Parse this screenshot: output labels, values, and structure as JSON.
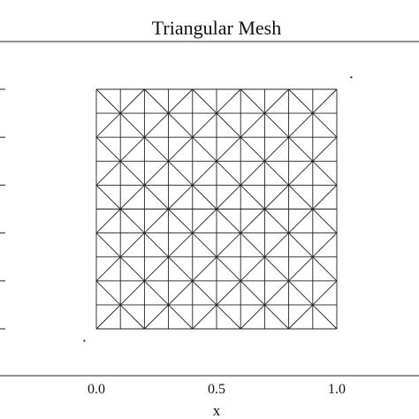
{
  "chart_data": {
    "type": "mesh",
    "title": "Triangular Mesh",
    "xlabel": "x",
    "ylabel": "",
    "xlim": [
      -0.4,
      1.35
    ],
    "ylim": [
      -0.2,
      1.25
    ],
    "x_ticks": [
      0.0,
      0.5,
      1.0
    ],
    "x_tick_labels": [
      "0.0",
      "0.5",
      "1.0"
    ],
    "y_ticks": [
      0.0,
      0.2,
      0.4,
      0.6,
      0.8,
      1.0
    ],
    "mesh": {
      "domain_x": [
        0.0,
        1.0
      ],
      "domain_y": [
        0.0,
        1.0
      ],
      "divisions": 10,
      "element": "triangle",
      "pattern": "cross-diagonals alternating"
    },
    "stray_points": [
      {
        "x": 1.06,
        "y": 1.05
      },
      {
        "x": -0.05,
        "y": -0.05
      }
    ],
    "grid": false,
    "legend": "none"
  }
}
